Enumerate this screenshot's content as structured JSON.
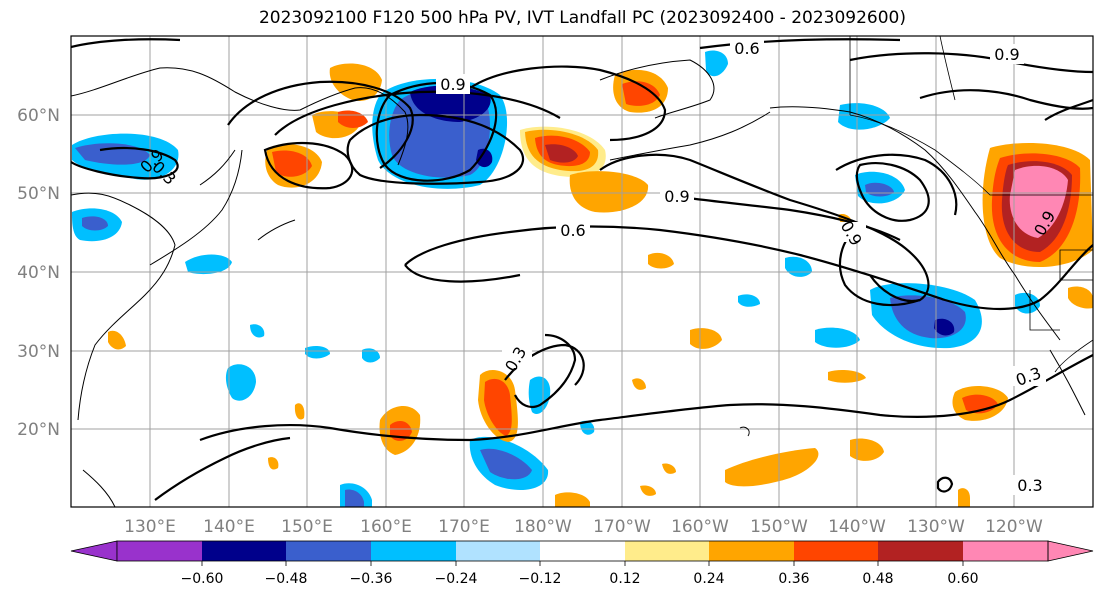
{
  "title": "2023092100 F120 500 hPa PV, IVT Landfall PC (2023092400 - 2023092600)",
  "latitude_labels": [
    "60°N",
    "50°N",
    "40°N",
    "30°N",
    "20°N"
  ],
  "longitude_labels": [
    "130°E",
    "140°E",
    "150°E",
    "160°E",
    "170°E",
    "180°W",
    "170°W",
    "160°W",
    "150°W",
    "140°W",
    "130°W",
    "120°W"
  ],
  "contour_labels": [
    "0.6",
    "0.9",
    "0.9",
    "0.9",
    "0.6",
    "0.9",
    "0.3",
    "0.3",
    "0.3",
    "0.9",
    "0.9",
    "0.3"
  ],
  "colorbar": {
    "ticks": [
      "−0.60",
      "−0.48",
      "−0.36",
      "−0.24",
      "−0.12",
      "0.12",
      "0.24",
      "0.36",
      "0.48",
      "0.60"
    ],
    "colors": [
      "#9932cc",
      "#00008b",
      "#3a5fcd",
      "#00bfff",
      "#b0e2ff",
      "#ffffff",
      "#ffec8b",
      "#ffa500",
      "#ff4500",
      "#b22222",
      "#ff87b4"
    ]
  }
}
